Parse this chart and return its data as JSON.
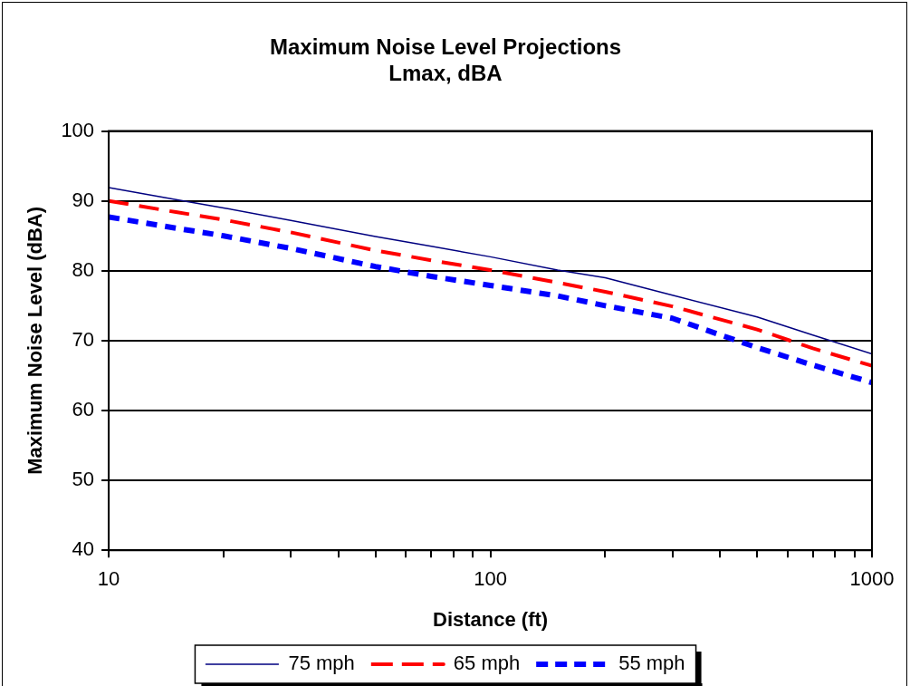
{
  "chart_data": {
    "type": "line",
    "title": [
      "Maximum Noise Level Projections",
      "Lmax, dBA"
    ],
    "xlabel": "Distance (ft)",
    "ylabel": "Maximum Noise Level (dBA)",
    "x": [
      10,
      15,
      20,
      30,
      50,
      70,
      100,
      150,
      200,
      300,
      500,
      700,
      1000
    ],
    "series": [
      {
        "name": "75 mph",
        "color": "#000080",
        "line_style": "solid",
        "values": [
          91.9,
          90.2,
          89.0,
          87.2,
          84.9,
          83.5,
          82.0,
          80.1,
          79.0,
          76.5,
          73.4,
          70.8,
          68.1
        ]
      },
      {
        "name": "65 mph",
        "color": "#ff0000",
        "line_style": "dashed",
        "values": [
          90.0,
          88.4,
          87.3,
          85.5,
          82.9,
          81.5,
          80.1,
          78.3,
          77.0,
          74.9,
          71.6,
          68.9,
          66.4
        ]
      },
      {
        "name": "55 mph",
        "color": "#0000ff",
        "line_style": "dotted",
        "values": [
          87.7,
          86.1,
          85.0,
          83.2,
          80.6,
          79.2,
          77.9,
          76.4,
          75.0,
          73.2,
          69.0,
          66.5,
          64.0
        ]
      }
    ],
    "log": "x",
    "xlim": [
      10,
      1000
    ],
    "xticks": [
      10,
      {
        "value": 20,
        "label": null
      },
      {
        "value": 30,
        "label": null
      },
      {
        "value": 40,
        "label": null
      },
      {
        "value": 50,
        "label": null
      },
      {
        "value": 60,
        "label": null
      },
      {
        "value": 70,
        "label": null
      },
      {
        "value": 80,
        "label": null
      },
      {
        "value": 90,
        "label": null
      },
      100,
      {
        "value": 200,
        "label": null
      },
      {
        "value": 300,
        "label": null
      },
      {
        "value": 400,
        "label": null
      },
      {
        "value": 500,
        "label": null
      },
      {
        "value": 600,
        "label": null
      },
      {
        "value": 700,
        "label": null
      },
      {
        "value": 800,
        "label": null
      },
      {
        "value": 900,
        "label": null
      },
      1000
    ],
    "ylim": [
      40,
      100
    ],
    "yticks": [
      40,
      50,
      60,
      70,
      80,
      90,
      100
    ],
    "grid": "y",
    "legend": "bottom",
    "marker": "none"
  }
}
